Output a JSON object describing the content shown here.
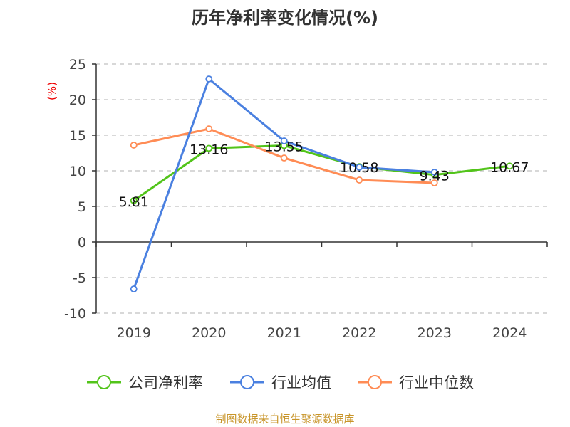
{
  "chart_data": {
    "type": "line",
    "title": "历年净利率变化情况(%)",
    "ylabel": "(%)",
    "xlabel": "",
    "ylim": [
      -10,
      25
    ],
    "yticks": [
      -10,
      -5,
      0,
      5,
      10,
      15,
      20,
      25
    ],
    "grid": true,
    "legend_position": "bottom",
    "categories": [
      "2019",
      "2020",
      "2021",
      "2022",
      "2023",
      "2024"
    ],
    "series": [
      {
        "name": "公司净利率",
        "color": "#52c41a",
        "values": [
          5.81,
          13.16,
          13.55,
          10.58,
          9.43,
          10.67
        ],
        "labels": [
          "5.81",
          "13.16",
          "13.55",
          "10.58",
          "9.43",
          "10.67"
        ]
      },
      {
        "name": "行业均值",
        "color": "#4a80e0",
        "values": [
          -6.6,
          22.9,
          14.2,
          10.5,
          9.8,
          null
        ]
      },
      {
        "name": "行业中位数",
        "color": "#ff8c55",
        "values": [
          13.6,
          15.9,
          11.8,
          8.7,
          8.3,
          null
        ]
      }
    ]
  },
  "footer": {
    "source": "制图数据来自恒生聚源数据库"
  }
}
